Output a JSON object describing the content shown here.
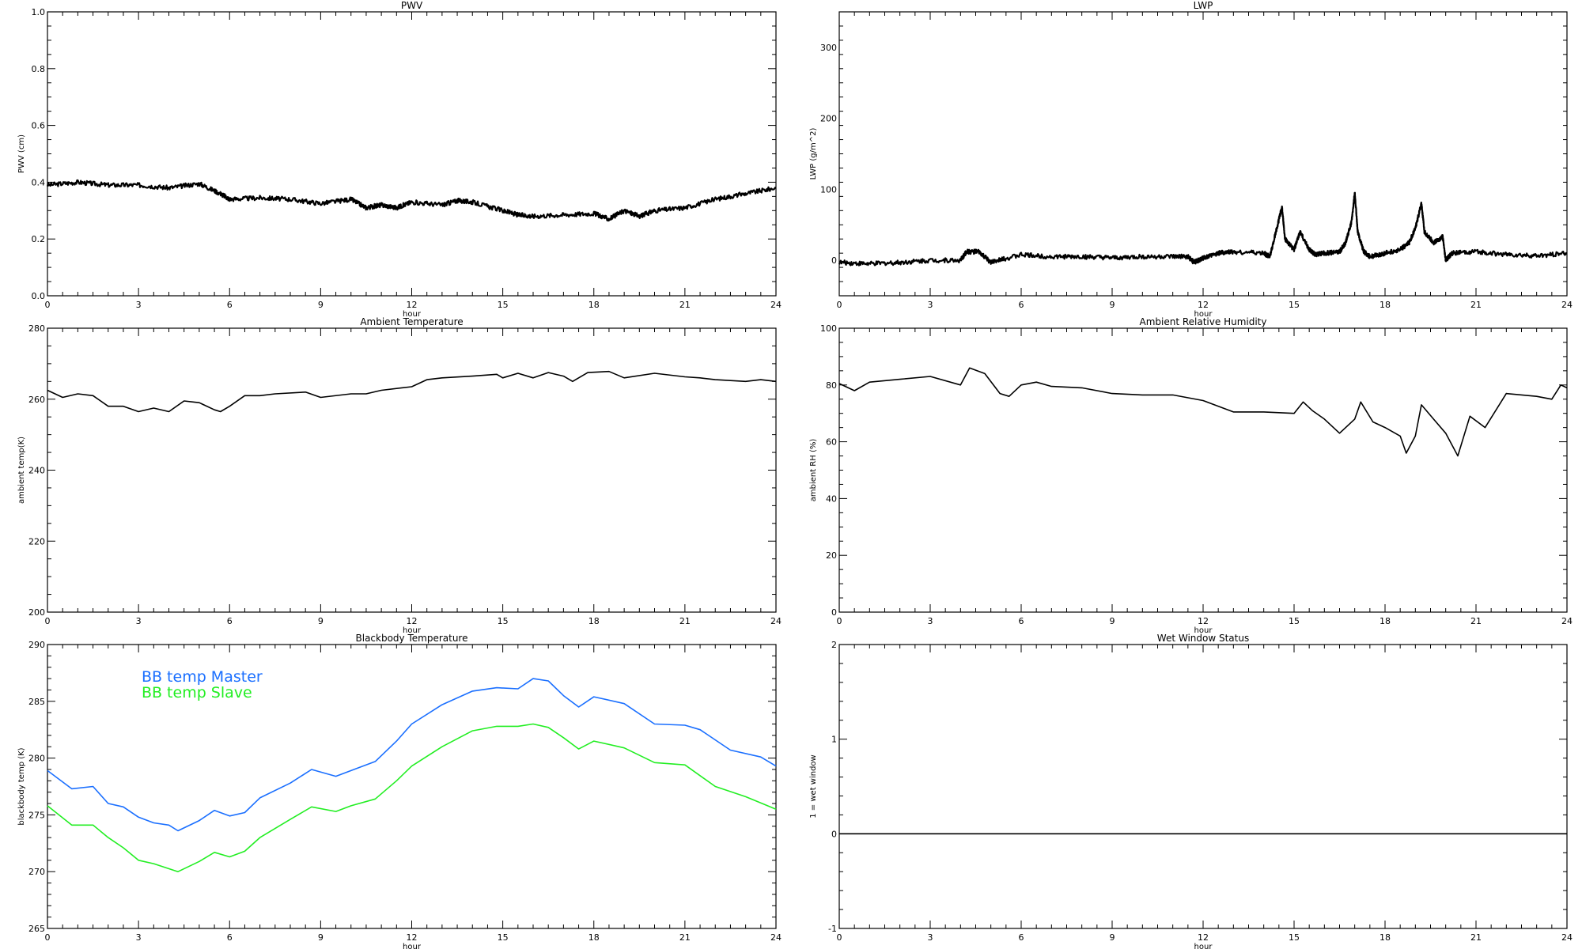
{
  "chart_data": [
    {
      "type": "line",
      "title": "PWV",
      "xlabel": "hour",
      "ylabel": "PWV (cm)",
      "xlim": [
        0,
        24
      ],
      "ylim": [
        0.0,
        1.0
      ],
      "xticks": [
        "0",
        "3",
        "6",
        "9",
        "12",
        "15",
        "18",
        "21",
        "24"
      ],
      "yticks": [
        "0.0",
        "0.2",
        "0.4",
        "0.6",
        "0.8",
        "1.0"
      ],
      "style": "noisy",
      "series": [
        {
          "name": "PWV",
          "color": "#000000",
          "x": [
            0,
            1,
            2,
            3,
            4,
            5,
            5.7,
            6,
            7,
            8,
            9,
            10,
            10.5,
            11,
            11.5,
            12,
            13,
            13.5,
            14,
            15,
            15.5,
            16,
            17,
            18,
            18.5,
            19,
            19.5,
            20,
            21,
            22,
            23,
            24
          ],
          "y": [
            0.39,
            0.4,
            0.39,
            0.39,
            0.38,
            0.395,
            0.36,
            0.34,
            0.345,
            0.34,
            0.325,
            0.34,
            0.31,
            0.32,
            0.31,
            0.33,
            0.32,
            0.335,
            0.33,
            0.3,
            0.285,
            0.28,
            0.285,
            0.29,
            0.27,
            0.3,
            0.28,
            0.3,
            0.31,
            0.34,
            0.36,
            0.38
          ]
        }
      ]
    },
    {
      "type": "line",
      "title": "LWP",
      "xlabel": "hour",
      "ylabel": "LWP (g/m^2)",
      "xlim": [
        0,
        24
      ],
      "ylim": [
        -50,
        350
      ],
      "xticks": [
        "0",
        "3",
        "6",
        "9",
        "12",
        "15",
        "18",
        "21",
        "24"
      ],
      "yticks": [
        "0",
        "100",
        "200",
        "300"
      ],
      "style": "noisy",
      "series": [
        {
          "name": "LWP",
          "color": "#000000",
          "x": [
            0,
            1,
            2,
            3,
            4,
            4.2,
            4.6,
            5,
            6,
            7,
            8,
            9,
            10,
            11,
            11.5,
            11.7,
            12,
            12.5,
            13,
            14,
            14.2,
            14.4,
            14.6,
            14.7,
            15,
            15.2,
            15.5,
            15.7,
            16,
            16.5,
            16.7,
            16.9,
            17,
            17.1,
            17.3,
            17.5,
            18,
            18.5,
            18.8,
            19,
            19.2,
            19.3,
            19.6,
            19.9,
            20,
            20.2,
            21,
            22,
            23,
            24
          ],
          "y": [
            -3,
            -5,
            -3,
            0,
            0,
            12,
            12,
            -3,
            8,
            5,
            5,
            3,
            5,
            5,
            5,
            -3,
            3,
            10,
            12,
            10,
            5,
            40,
            75,
            30,
            15,
            40,
            15,
            8,
            10,
            12,
            25,
            55,
            95,
            40,
            12,
            5,
            10,
            15,
            25,
            45,
            80,
            40,
            25,
            33,
            0,
            10,
            12,
            8,
            6,
            10
          ]
        }
      ]
    },
    {
      "type": "line",
      "title": "Ambient Temperature",
      "xlabel": "hour",
      "ylabel": "ambient temp(K)",
      "xlim": [
        0,
        24
      ],
      "ylim": [
        200,
        280
      ],
      "xticks": [
        "0",
        "3",
        "6",
        "9",
        "12",
        "15",
        "18",
        "21",
        "24"
      ],
      "yticks": [
        "200",
        "220",
        "240",
        "260",
        "280"
      ],
      "style": "line",
      "series": [
        {
          "name": "ambient temp",
          "color": "#000000",
          "x": [
            0,
            0.5,
            1,
            1.5,
            2,
            2.5,
            3,
            3.5,
            4,
            4.5,
            5,
            5.5,
            5.7,
            6,
            6.5,
            7,
            7.5,
            8.5,
            9,
            10,
            10.5,
            11,
            12,
            12.5,
            13,
            14,
            14.8,
            15,
            15.5,
            16,
            16.5,
            17,
            17.3,
            17.8,
            18.5,
            19,
            20,
            21,
            21.5,
            22,
            23,
            23.5,
            24
          ],
          "y": [
            262.5,
            260.5,
            261.5,
            261,
            258,
            258,
            256.5,
            257.5,
            256.5,
            259.5,
            259,
            257,
            256.5,
            258,
            261,
            261,
            261.5,
            262,
            260.5,
            261.5,
            261.5,
            262.5,
            263.5,
            265.5,
            266,
            266.5,
            267,
            266,
            267.3,
            266,
            267.5,
            266.5,
            265,
            267.5,
            267.8,
            266,
            267.3,
            266.3,
            266,
            265.5,
            265,
            265.5,
            265
          ]
        }
      ]
    },
    {
      "type": "line",
      "title": "Ambient Relative Humidity",
      "xlabel": "hour",
      "ylabel": "ambient RH (%)",
      "xlim": [
        0,
        24
      ],
      "ylim": [
        0,
        100
      ],
      "xticks": [
        "0",
        "3",
        "6",
        "9",
        "12",
        "15",
        "18",
        "21",
        "24"
      ],
      "yticks": [
        "0",
        "20",
        "40",
        "60",
        "80",
        "100"
      ],
      "style": "line",
      "series": [
        {
          "name": "ambient RH",
          "color": "#000000",
          "x": [
            0,
            0.5,
            1,
            2,
            3,
            4,
            4.3,
            4.8,
            5.3,
            5.6,
            6,
            6.5,
            7,
            8,
            9,
            10,
            11,
            12,
            13,
            14,
            15,
            15.3,
            15.6,
            16,
            16.5,
            17,
            17.2,
            17.6,
            18,
            18.5,
            18.7,
            19,
            19.2,
            19.6,
            20,
            20.4,
            20.8,
            21.3,
            22,
            23,
            23.5,
            23.8,
            24
          ],
          "y": [
            80.5,
            78,
            81,
            82,
            83,
            80,
            86,
            84,
            77,
            76,
            80,
            81,
            79.5,
            79,
            77,
            76.5,
            76.5,
            74.5,
            70.5,
            70.5,
            70,
            74,
            71,
            68,
            63,
            68,
            74,
            67,
            65,
            62,
            56,
            62,
            73,
            68,
            63,
            55,
            69,
            65,
            77,
            76,
            75,
            80,
            79
          ]
        }
      ]
    },
    {
      "type": "line",
      "title": "Blackbody Temperature",
      "xlabel": "hour",
      "ylabel": "blackbody temp (K)",
      "xlim": [
        0,
        24
      ],
      "ylim": [
        265,
        290
      ],
      "xticks": [
        "0",
        "3",
        "6",
        "9",
        "12",
        "15",
        "18",
        "21",
        "24"
      ],
      "yticks": [
        "265",
        "270",
        "275",
        "280",
        "285",
        "290"
      ],
      "style": "line",
      "legend": "top-left",
      "series": [
        {
          "name": "BB temp Master",
          "color": "#1a6fff",
          "x": [
            0,
            0.8,
            1.5,
            2,
            2.5,
            3,
            3.5,
            4,
            4.3,
            5,
            5.5,
            6,
            6.5,
            7,
            8,
            8.7,
            9.5,
            10,
            10.8,
            11.5,
            12,
            13,
            14,
            14.8,
            15.5,
            16,
            16.5,
            17,
            17.5,
            18,
            19,
            20,
            21,
            21.5,
            22.5,
            23.5,
            24
          ],
          "y": [
            278.9,
            277.3,
            277.5,
            276,
            275.7,
            274.8,
            274.3,
            274.1,
            273.6,
            274.5,
            275.4,
            274.9,
            275.2,
            276.5,
            277.8,
            279,
            278.4,
            278.9,
            279.7,
            281.5,
            283,
            284.7,
            285.9,
            286.2,
            286.1,
            287,
            286.8,
            285.5,
            284.5,
            285.4,
            284.8,
            283,
            282.9,
            282.5,
            280.7,
            280.1,
            279.3
          ]
        },
        {
          "name": "BB temp Slave",
          "color": "#22ee22",
          "x": [
            0,
            0.8,
            1.5,
            2,
            2.5,
            3,
            3.5,
            4.3,
            5,
            5.5,
            6,
            6.5,
            7,
            8,
            8.7,
            9.5,
            10,
            10.8,
            11.5,
            12,
            13,
            14,
            14.8,
            15.5,
            16,
            16.5,
            17,
            17.5,
            18,
            19,
            20,
            21,
            22,
            23,
            24
          ],
          "y": [
            275.8,
            274.1,
            274.1,
            273,
            272.1,
            271,
            270.7,
            270,
            270.9,
            271.7,
            271.3,
            271.8,
            273,
            274.6,
            275.7,
            275.3,
            275.8,
            276.4,
            278,
            279.3,
            281,
            282.4,
            282.8,
            282.8,
            283,
            282.7,
            281.8,
            280.8,
            281.5,
            280.9,
            279.6,
            279.4,
            277.5,
            276.6,
            275.5
          ]
        }
      ]
    },
    {
      "type": "line",
      "title": "Wet Window Status",
      "xlabel": "hour",
      "ylabel": "1 = wet window",
      "xlim": [
        0,
        24
      ],
      "ylim": [
        -1,
        2
      ],
      "xticks": [
        "0",
        "3",
        "6",
        "9",
        "12",
        "15",
        "18",
        "21",
        "24"
      ],
      "yticks": [
        "-1",
        "0",
        "1",
        "2"
      ],
      "style": "line",
      "series": [
        {
          "name": "wet window",
          "color": "#000000",
          "x": [
            0,
            24
          ],
          "y": [
            0,
            0
          ]
        }
      ]
    }
  ]
}
